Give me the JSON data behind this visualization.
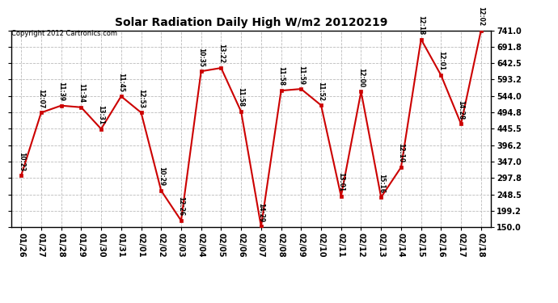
{
  "title": "Solar Radiation Daily High W/m2 20120219",
  "copyright": "Copyright 2012 Cartronics.com",
  "dates": [
    "01/26",
    "01/27",
    "01/28",
    "01/29",
    "01/30",
    "01/31",
    "02/01",
    "02/02",
    "02/03",
    "02/04",
    "02/05",
    "02/06",
    "02/07",
    "02/08",
    "02/09",
    "02/10",
    "02/11",
    "02/12",
    "02/13",
    "02/14",
    "02/15",
    "02/16",
    "02/17",
    "02/18"
  ],
  "values": [
    305,
    494,
    515,
    510,
    445,
    543,
    494,
    260,
    170,
    618,
    628,
    497,
    152,
    560,
    565,
    516,
    243,
    557,
    240,
    330,
    714,
    606,
    460,
    741
  ],
  "times": [
    "10:23",
    "12:07",
    "11:39",
    "11:34",
    "13:31",
    "11:45",
    "12:53",
    "10:29",
    "12:26",
    "10:35",
    "13:22",
    "11:58",
    "14:29",
    "11:58",
    "11:59",
    "11:52",
    "13:01",
    "12:00",
    "15:16",
    "12:10",
    "12:18",
    "12:01",
    "14:28",
    "12:02"
  ],
  "line_color": "#cc0000",
  "marker_color": "#cc0000",
  "bg_color": "#ffffff",
  "grid_color": "#bbbbbb",
  "ylim_min": 150.0,
  "ylim_max": 741.0,
  "ytick_labels": [
    "150.0",
    "199.2",
    "248.5",
    "297.8",
    "347.0",
    "396.2",
    "445.5",
    "494.8",
    "544.0",
    "593.2",
    "642.5",
    "691.8",
    "741.0"
  ],
  "ytick_values": [
    150.0,
    199.2,
    248.5,
    297.8,
    347.0,
    396.2,
    445.5,
    494.8,
    544.0,
    593.2,
    642.5,
    691.8,
    741.0
  ]
}
